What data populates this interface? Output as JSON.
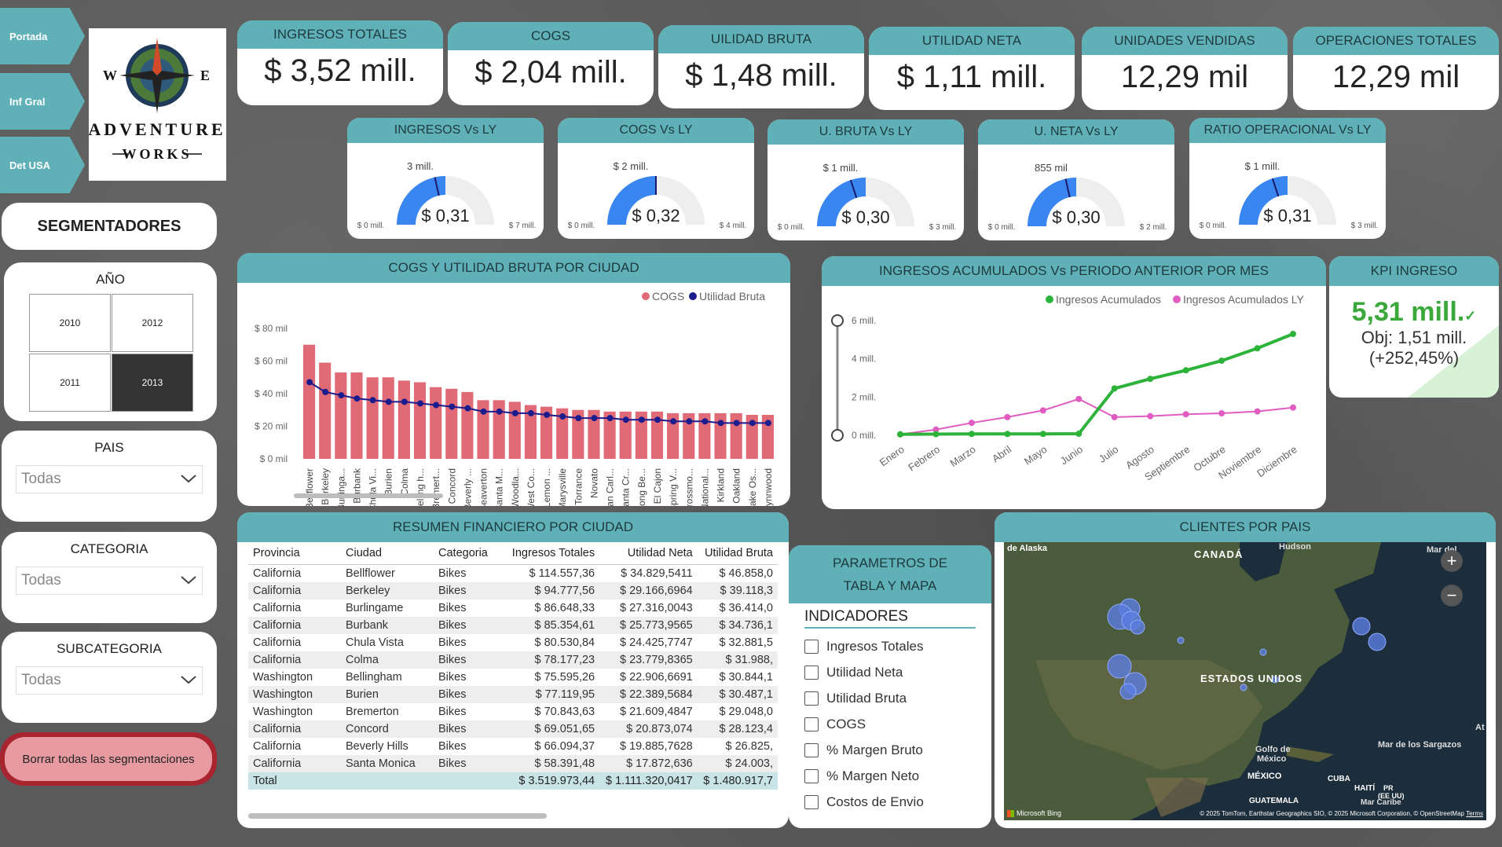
{
  "nav": {
    "items": [
      {
        "label": "Portada"
      },
      {
        "label": "Inf Gral"
      },
      {
        "label": "Det USA"
      }
    ]
  },
  "logo": {
    "line1": "ADVENTURE",
    "line2": "WORKS",
    "w": "W",
    "e": "E"
  },
  "slicers": {
    "title": "SEGMENTADORES",
    "year": {
      "title": "AÑO",
      "options": [
        "2010",
        "2012",
        "2011",
        "2013"
      ],
      "selected": "2013"
    },
    "country": {
      "title": "PAIS",
      "value": "Todas"
    },
    "category": {
      "title": "CATEGORIA",
      "value": "Todas"
    },
    "subcategory": {
      "title": "SUBCATEGORIA",
      "value": "Todas"
    },
    "clear_label": "Borrar todas las segmentaciones"
  },
  "kpis": [
    {
      "label": "INGRESOS TOTALES",
      "value": "$ 3,52 mill."
    },
    {
      "label": "COGS",
      "value": "$ 2,04 mill."
    },
    {
      "label": "UILIDAD BRUTA",
      "value": "$ 1,48 mill."
    },
    {
      "label": "UTILIDAD NETA",
      "value": "$ 1,11 mill."
    },
    {
      "label": "UNIDADES VENDIDAS",
      "value": "12,29 mil"
    },
    {
      "label": "OPERACIONES TOTALES",
      "value": "12,29 mil"
    }
  ],
  "gauges": [
    {
      "label": "INGRESOS Vs LY",
      "value": "$ 0,31",
      "target": "3 mill.",
      "min": "$ 0 mill.",
      "max": "$ 7 mill.",
      "fill": 0.5,
      "target_frac": 0.43
    },
    {
      "label": "COGS Vs LY",
      "value": "$ 0,32",
      "target": "$ 2 mill.",
      "min": "$ 0 mill.",
      "max": "$ 4 mill.",
      "fill": 0.5,
      "target_frac": 0.5
    },
    {
      "label": "U. BRUTA Vs LY",
      "value": "$ 0,30",
      "target": "$ 1 mill.",
      "min": "$ 0 mill.",
      "max": "$ 3 mill.",
      "fill": 0.5,
      "target_frac": 0.4
    },
    {
      "label": "U. NETA Vs LY",
      "value": "$ 0,30",
      "target": "855 mil",
      "min": "$ 0 mill.",
      "max": "$ 2 mill.",
      "fill": 0.5,
      "target_frac": 0.43
    },
    {
      "label": "RATIO OPERACIONAL Vs LY",
      "value": "$ 0,31",
      "target": "$ 1 mill.",
      "min": "$ 0 mill.",
      "max": "$ 3 mill.",
      "fill": 0.5,
      "target_frac": 0.4
    }
  ],
  "bar_chart": {
    "title": "COGS Y UTILIDAD BRUTA POR CIUDAD",
    "legend": [
      "COGS",
      "Utilidad Bruta"
    ]
  },
  "line_chart": {
    "title": "INGRESOS ACUMULADOS Vs PERIODO ANTERIOR POR MES",
    "legend": [
      "Ingresos Acumulados",
      "Ingresos Acumulados LY"
    ]
  },
  "kpi_ingreso": {
    "title": "KPI INGRESO",
    "value": "5,31 mill.",
    "objective": "Obj: 1,51 mill.",
    "delta": "(+252,45%)"
  },
  "table": {
    "title": "RESUMEN FINANCIERO POR CIUDAD",
    "columns": [
      "Provincia",
      "Ciudad",
      "Categoria",
      "Ingresos Totales",
      "Utilidad Neta",
      "Utilidad Bruta"
    ],
    "rows": [
      [
        "California",
        "Bellflower",
        "Bikes",
        "$ 114.557,36",
        "$ 34.829,5411",
        "$ 46.858,0"
      ],
      [
        "California",
        "Berkeley",
        "Bikes",
        "$ 94.777,56",
        "$ 29.166,6964",
        "$ 39.118,3"
      ],
      [
        "California",
        "Burlingame",
        "Bikes",
        "$ 86.648,33",
        "$ 27.316,0043",
        "$ 36.414,0"
      ],
      [
        "California",
        "Burbank",
        "Bikes",
        "$ 85.354,61",
        "$ 25.773,9565",
        "$ 34.736,1"
      ],
      [
        "California",
        "Chula Vista",
        "Bikes",
        "$ 80.530,84",
        "$ 24.425,7747",
        "$ 32.881,5"
      ],
      [
        "California",
        "Colma",
        "Bikes",
        "$ 78.177,23",
        "$ 23.779,8365",
        "$ 31.988,"
      ],
      [
        "Washington",
        "Bellingham",
        "Bikes",
        "$ 75.595,26",
        "$ 22.906,6691",
        "$ 30.844,1"
      ],
      [
        "Washington",
        "Burien",
        "Bikes",
        "$ 77.119,95",
        "$ 22.389,5684",
        "$ 30.487,1"
      ],
      [
        "Washington",
        "Bremerton",
        "Bikes",
        "$ 70.843,63",
        "$ 21.609,4847",
        "$ 29.048,0"
      ],
      [
        "California",
        "Concord",
        "Bikes",
        "$ 69.051,65",
        "$ 20.873,074",
        "$ 28.123,4"
      ],
      [
        "California",
        "Beverly Hills",
        "Bikes",
        "$ 66.094,37",
        "$ 19.885,7628",
        "$ 26.825,"
      ],
      [
        "California",
        "Santa Monica",
        "Bikes",
        "$ 58.391,48",
        "$ 17.872,636",
        "$ 24.003,"
      ]
    ],
    "total": [
      "Total",
      "",
      "",
      "$ 3.519.973,44",
      "$ 1.111.320,0417",
      "$ 1.480.917,7"
    ]
  },
  "params": {
    "title1": "PARAMETROS DE",
    "title2": "TABLA Y MAPA",
    "subtitle": "INDICADORES",
    "options": [
      "Ingresos Totales",
      "Utilidad Neta",
      "Utilidad Bruta",
      "COGS",
      "% Margen Bruto",
      "% Margen Neto",
      "Costos de Envio"
    ]
  },
  "map": {
    "title": "CLIENTES POR PAIS",
    "labels": {
      "alaska": "de Alaska",
      "canada": "CANADÁ",
      "hudson": "Hudson",
      "mar_del": "Mar del",
      "usa": "ESTADOS UNIDOS",
      "golfo": "Golfo de",
      "mexico_g": "México",
      "mexico": "MÉXICO",
      "sargazos": "Mar de los Sargazos",
      "cuba": "CUBA",
      "haiti": "HAITÍ",
      "pr": "PR",
      "eeuu": "(EE UU)",
      "guatemala": "GUATEMALA",
      "caribe": "Mar Caribe",
      "at": "At",
      "bing": "Microsoft Bing",
      "credits": "© 2025 TomTom, Earthstar Geographics SIO, © 2025 Microsoft Corporation, © OpenStreetMap",
      "terms": "Terms"
    }
  },
  "chart_data": [
    {
      "type": "bar",
      "title": "COGS Y UTILIDAD BRUTA POR CIUDAD",
      "categories": [
        "Bellflower",
        "Berkeley",
        "Burlinga...",
        "Burbank",
        "Chula Vi...",
        "Burien",
        "Colma",
        "Belling h...",
        "Bremert...",
        "Concord",
        "Beverly ...",
        "Beaverton",
        "Santa M...",
        "Woodla...",
        "West Co...",
        "Lemon ...",
        "Marysville",
        "Torrance",
        "Novato",
        "San Carl...",
        "Santa Cr...",
        "Long Be...",
        "El Cajon",
        "Spring V...",
        "Grossmo...",
        "National...",
        "Kirkland",
        "Oakland",
        "Lake Os...",
        "Lynnwood"
      ],
      "series": [
        {
          "name": "COGS",
          "values": [
            70,
            59,
            53,
            53,
            50,
            50,
            48,
            47,
            44,
            43,
            41,
            36,
            36,
            35,
            33,
            32,
            31,
            30,
            30,
            29,
            29,
            29,
            29,
            28,
            28,
            28,
            28,
            28,
            27,
            27
          ],
          "color": "#e06b77"
        },
        {
          "name": "Utilidad Bruta",
          "values": [
            47,
            41,
            39,
            37,
            36,
            35,
            35,
            34,
            33,
            32,
            31,
            29,
            29,
            28,
            28,
            27,
            26,
            25,
            25,
            25,
            24,
            24,
            24,
            23,
            23,
            23,
            22,
            22,
            22,
            22
          ],
          "color": "#1c1c8c"
        }
      ],
      "yticks": [
        "$ 80 mil",
        "$ 60 mil",
        "$ 40 mil",
        "$ 20 mil",
        "$ 0 mil"
      ],
      "ylim": [
        0,
        80
      ]
    },
    {
      "type": "line",
      "title": "INGRESOS ACUMULADOS Vs PERIODO ANTERIOR POR MES",
      "x": [
        "Enero",
        "Febrero",
        "Marzo",
        "Abril",
        "Mayo",
        "Junio",
        "Julio",
        "Agosto",
        "Septiembre",
        "Octubre",
        "Noviembre",
        "Diciembre"
      ],
      "series": [
        {
          "name": "Ingresos Acumulados",
          "values": [
            0.05,
            0.06,
            0.07,
            0.07,
            0.07,
            0.08,
            2.45,
            2.95,
            3.4,
            3.9,
            4.55,
            5.3
          ],
          "color": "#2db33a"
        },
        {
          "name": "Ingresos Acumulados LY",
          "values": [
            0.05,
            0.3,
            0.65,
            0.95,
            1.3,
            1.9,
            0.95,
            1.0,
            1.1,
            1.15,
            1.25,
            1.45
          ],
          "color": "#e05cc0"
        }
      ],
      "yticks": [
        "6 mill.",
        "4 mill.",
        "2 mill.",
        "0 mill."
      ],
      "ylim": [
        0,
        6
      ]
    }
  ]
}
